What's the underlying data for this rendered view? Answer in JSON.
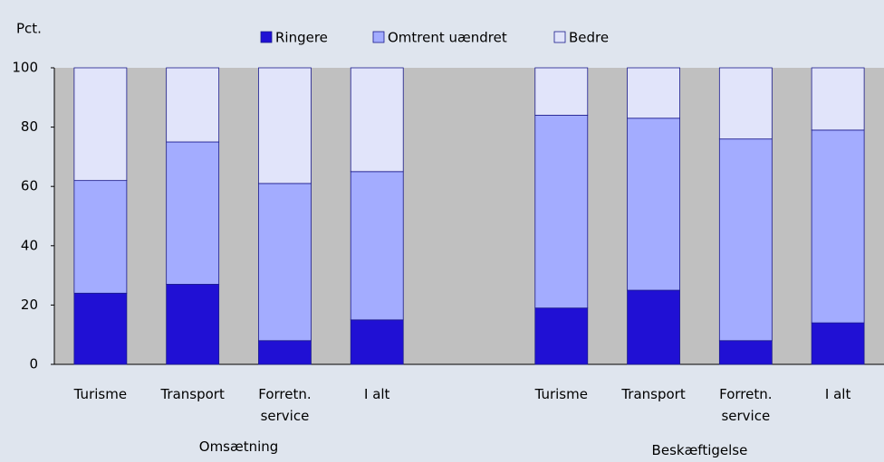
{
  "chart_data": {
    "type": "stacked-bar",
    "y_label": "Pct.",
    "categories": [
      "Turisme",
      "Transport",
      "Forretn. service",
      "I alt",
      null,
      "Turisme",
      "Transport",
      "Forretn. service",
      "I alt"
    ],
    "groups": [
      "Omsætning",
      "Beskæftigelse"
    ],
    "series": [
      {
        "name": "Ringere",
        "color": "#2010d4",
        "values": [
          24,
          27,
          8,
          15,
          null,
          19,
          25,
          8,
          14
        ]
      },
      {
        "name": "Omtrent uændret",
        "color": "#a3acff",
        "values": [
          38,
          48,
          53,
          50,
          null,
          65,
          58,
          68,
          65
        ]
      },
      {
        "name": "Bedre",
        "color": "#e1e4fa",
        "values": [
          38,
          25,
          39,
          35,
          null,
          16,
          17,
          24,
          21
        ]
      }
    ],
    "ylim": [
      0,
      100
    ],
    "yticks": [
      0,
      20,
      40,
      60,
      80,
      100
    ],
    "legend": "top"
  }
}
